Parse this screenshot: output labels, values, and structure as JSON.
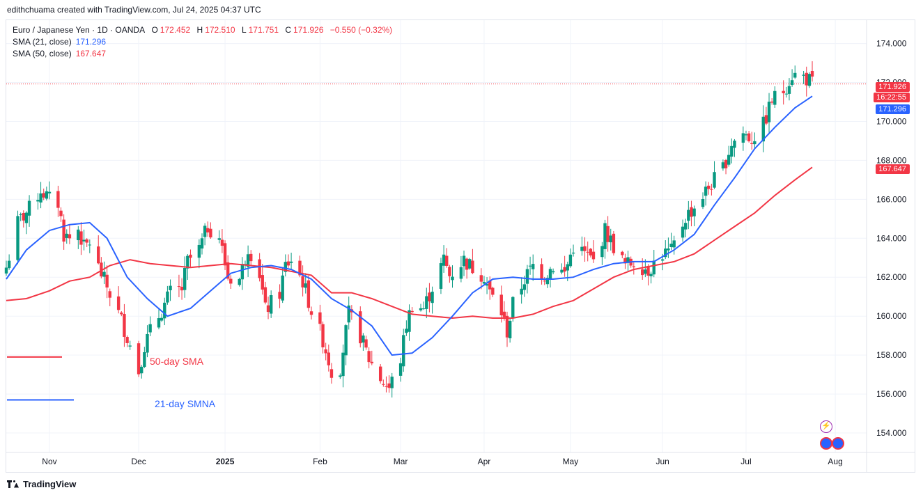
{
  "credit": "edithchuama created with TradingView.com, Jul 24, 2025 04:37 UTC",
  "legend": {
    "symbol": "Euro / Japanese Yen · 1D · OANDA",
    "o_label": "O",
    "o": "172.452",
    "h_label": "H",
    "h": "172.510",
    "l_label": "L",
    "l": "171.751",
    "c_label": "C",
    "c": "171.926",
    "change": "−0.550 (−0.32%)",
    "sma21_label": "SMA (21, close)",
    "sma21": "171.296",
    "sma50_label": "SMA (50, close)",
    "sma50": "167.647"
  },
  "annotations": {
    "sma50": "50-day SMA",
    "sma21": "21-day SMNA"
  },
  "badges": {
    "price": "171.926",
    "countdown": "16:22:55",
    "sma21": "171.296",
    "sma50": "167.647"
  },
  "logo": "TradingView",
  "colors": {
    "up": "#089981",
    "down": "#f23645",
    "sma21": "#2962ff",
    "sma50": "#f23645"
  },
  "chart_data": {
    "type": "candlestick",
    "y_axis_ticks": [
      "174.000",
      "172.000",
      "170.000",
      "168.000",
      "166.000",
      "164.000",
      "162.000",
      "160.000",
      "158.000",
      "156.000",
      "154.000"
    ],
    "ylim": [
      153.0,
      175.2
    ],
    "x_axis_labels": [
      {
        "label": "Nov",
        "date": "2024-11-01"
      },
      {
        "label": "Dec",
        "date": "2024-12-02"
      },
      {
        "label": "2025",
        "date": "2025-01-01"
      },
      {
        "label": "Feb",
        "date": "2025-02-03"
      },
      {
        "label": "Mar",
        "date": "2025-03-03"
      },
      {
        "label": "Apr",
        "date": "2025-04-01"
      },
      {
        "label": "May",
        "date": "2025-05-01"
      },
      {
        "label": "Jun",
        "date": "2025-06-02"
      },
      {
        "label": "Jul",
        "date": "2025-07-01"
      },
      {
        "label": "Aug",
        "date": "2025-08-01"
      }
    ],
    "x_range": [
      "2024-10-17",
      "2025-08-08"
    ],
    "grid": true,
    "close_anchors": [
      [
        "2024-10-17",
        162.5
      ],
      [
        "2024-10-21",
        164.8
      ],
      [
        "2024-10-25",
        165.5
      ],
      [
        "2024-10-29",
        166.5
      ],
      [
        "2024-11-01",
        166.0
      ],
      [
        "2024-11-04",
        165.8
      ],
      [
        "2024-11-06",
        164.2
      ],
      [
        "2024-11-08",
        164.0
      ],
      [
        "2024-11-11",
        164.5
      ],
      [
        "2024-11-13",
        163.5
      ],
      [
        "2024-11-15",
        163.8
      ],
      [
        "2024-11-18",
        162.5
      ],
      [
        "2024-11-21",
        161.5
      ],
      [
        "2024-11-26",
        159.8
      ],
      [
        "2024-11-29",
        158.5
      ],
      [
        "2024-12-02",
        157.2
      ],
      [
        "2024-12-04",
        158.5
      ],
      [
        "2024-12-06",
        159.2
      ],
      [
        "2024-12-10",
        160.3
      ],
      [
        "2024-12-13",
        161.2
      ],
      [
        "2024-12-17",
        161.4
      ],
      [
        "2024-12-19",
        162.8
      ],
      [
        "2024-12-23",
        163.4
      ],
      [
        "2024-12-26",
        164.6
      ],
      [
        "2024-12-30",
        164.1
      ],
      [
        "2025-01-02",
        162.0
      ],
      [
        "2025-01-06",
        161.9
      ],
      [
        "2025-01-09",
        163.6
      ],
      [
        "2025-01-13",
        162.2
      ],
      [
        "2025-01-15",
        160.3
      ],
      [
        "2025-01-20",
        161.2
      ],
      [
        "2025-01-22",
        162.6
      ],
      [
        "2025-01-24",
        162.9
      ],
      [
        "2025-01-28",
        161.8
      ],
      [
        "2025-01-31",
        160.3
      ],
      [
        "2025-02-04",
        158.8
      ],
      [
        "2025-02-07",
        157.2
      ],
      [
        "2025-02-10",
        157.4
      ],
      [
        "2025-02-13",
        160.1
      ],
      [
        "2025-02-17",
        159.0
      ],
      [
        "2025-02-20",
        157.8
      ],
      [
        "2025-02-24",
        156.8
      ],
      [
        "2025-02-27",
        156.3
      ],
      [
        "2025-03-03",
        157.8
      ],
      [
        "2025-03-05",
        159.6
      ],
      [
        "2025-03-07",
        160.6
      ],
      [
        "2025-03-11",
        160.4
      ],
      [
        "2025-03-14",
        161.5
      ],
      [
        "2025-03-18",
        162.9
      ],
      [
        "2025-03-20",
        162.1
      ],
      [
        "2025-03-25",
        162.9
      ],
      [
        "2025-03-27",
        162.6
      ],
      [
        "2025-04-01",
        162.1
      ],
      [
        "2025-04-03",
        161.2
      ],
      [
        "2025-04-07",
        160.2
      ],
      [
        "2025-04-09",
        159.2
      ],
      [
        "2025-04-11",
        160.6
      ],
      [
        "2025-04-15",
        161.9
      ],
      [
        "2025-04-18",
        162.6
      ],
      [
        "2025-04-22",
        162.1
      ],
      [
        "2025-04-25",
        162.6
      ],
      [
        "2025-04-29",
        162.2
      ],
      [
        "2025-05-02",
        163.6
      ],
      [
        "2025-05-06",
        163.2
      ],
      [
        "2025-05-09",
        162.8
      ],
      [
        "2025-05-13",
        164.4
      ],
      [
        "2025-05-16",
        163.6
      ],
      [
        "2025-05-20",
        162.6
      ],
      [
        "2025-05-23",
        162.8
      ],
      [
        "2025-05-28",
        162.4
      ],
      [
        "2025-06-02",
        163.2
      ],
      [
        "2025-06-05",
        163.3
      ],
      [
        "2025-06-10",
        165.1
      ],
      [
        "2025-06-13",
        165.6
      ],
      [
        "2025-06-18",
        166.6
      ],
      [
        "2025-06-23",
        167.6
      ],
      [
        "2025-06-26",
        168.9
      ],
      [
        "2025-06-30",
        169.4
      ],
      [
        "2025-07-03",
        169.1
      ],
      [
        "2025-07-07",
        169.8
      ],
      [
        "2025-07-10",
        171.1
      ],
      [
        "2025-07-14",
        171.6
      ],
      [
        "2025-07-17",
        172.4
      ],
      [
        "2025-07-21",
        172.3
      ],
      [
        "2025-07-23",
        172.1
      ],
      [
        "2025-07-24",
        171.926
      ]
    ],
    "sma21_anchors": [
      [
        "2024-10-17",
        161.9
      ],
      [
        "2024-10-24",
        163.4
      ],
      [
        "2024-11-01",
        164.4
      ],
      [
        "2024-11-08",
        164.7
      ],
      [
        "2024-11-15",
        164.8
      ],
      [
        "2024-11-21",
        164.0
      ],
      [
        "2024-11-28",
        162.0
      ],
      [
        "2024-12-05",
        160.9
      ],
      [
        "2024-12-12",
        160.0
      ],
      [
        "2024-12-20",
        160.4
      ],
      [
        "2024-12-27",
        161.3
      ],
      [
        "2025-01-03",
        162.2
      ],
      [
        "2025-01-10",
        162.5
      ],
      [
        "2025-01-17",
        162.6
      ],
      [
        "2025-01-24",
        162.4
      ],
      [
        "2025-01-31",
        161.9
      ],
      [
        "2025-02-07",
        160.9
      ],
      [
        "2025-02-14",
        160.3
      ],
      [
        "2025-02-21",
        159.5
      ],
      [
        "2025-02-28",
        158.0
      ],
      [
        "2025-03-07",
        158.1
      ],
      [
        "2025-03-14",
        158.9
      ],
      [
        "2025-03-21",
        160.0
      ],
      [
        "2025-03-28",
        161.2
      ],
      [
        "2025-04-04",
        161.9
      ],
      [
        "2025-04-11",
        162.0
      ],
      [
        "2025-04-18",
        161.9
      ],
      [
        "2025-04-25",
        161.9
      ],
      [
        "2025-05-02",
        162.0
      ],
      [
        "2025-05-09",
        162.4
      ],
      [
        "2025-05-16",
        162.7
      ],
      [
        "2025-05-23",
        162.8
      ],
      [
        "2025-05-30",
        162.8
      ],
      [
        "2025-06-06",
        163.4
      ],
      [
        "2025-06-13",
        164.2
      ],
      [
        "2025-06-20",
        165.7
      ],
      [
        "2025-06-27",
        167.1
      ],
      [
        "2025-07-04",
        168.6
      ],
      [
        "2025-07-11",
        169.7
      ],
      [
        "2025-07-18",
        170.7
      ],
      [
        "2025-07-24",
        171.296
      ]
    ],
    "sma50_anchors": [
      [
        "2024-10-17",
        160.8
      ],
      [
        "2024-10-24",
        160.9
      ],
      [
        "2024-11-01",
        161.3
      ],
      [
        "2024-11-08",
        161.8
      ],
      [
        "2024-11-15",
        162.0
      ],
      [
        "2024-11-22",
        162.6
      ],
      [
        "2024-11-29",
        162.9
      ],
      [
        "2024-12-06",
        162.7
      ],
      [
        "2024-12-13",
        162.6
      ],
      [
        "2024-12-20",
        162.5
      ],
      [
        "2024-12-27",
        162.6
      ],
      [
        "2025-01-03",
        162.7
      ],
      [
        "2025-01-10",
        162.6
      ],
      [
        "2025-01-17",
        162.5
      ],
      [
        "2025-01-24",
        162.3
      ],
      [
        "2025-01-31",
        162.1
      ],
      [
        "2025-02-07",
        161.2
      ],
      [
        "2025-02-14",
        161.2
      ],
      [
        "2025-02-21",
        160.9
      ],
      [
        "2025-02-28",
        160.5
      ],
      [
        "2025-03-07",
        160.1
      ],
      [
        "2025-03-14",
        160.0
      ],
      [
        "2025-03-21",
        159.9
      ],
      [
        "2025-03-28",
        160.0
      ],
      [
        "2025-04-04",
        159.9
      ],
      [
        "2025-04-11",
        159.9
      ],
      [
        "2025-04-18",
        160.1
      ],
      [
        "2025-04-25",
        160.5
      ],
      [
        "2025-05-02",
        160.8
      ],
      [
        "2025-05-09",
        161.4
      ],
      [
        "2025-05-16",
        162.0
      ],
      [
        "2025-05-23",
        162.4
      ],
      [
        "2025-05-30",
        162.6
      ],
      [
        "2025-06-06",
        162.8
      ],
      [
        "2025-06-13",
        163.2
      ],
      [
        "2025-06-20",
        163.9
      ],
      [
        "2025-06-27",
        164.6
      ],
      [
        "2025-07-04",
        165.3
      ],
      [
        "2025-07-11",
        166.2
      ],
      [
        "2025-07-18",
        167.0
      ],
      [
        "2025-07-24",
        167.647
      ]
    ],
    "annotation_lines": [
      {
        "series": "SMA 50",
        "y": 157.9
      },
      {
        "series": "SMA 21",
        "y": 155.7
      }
    ]
  }
}
